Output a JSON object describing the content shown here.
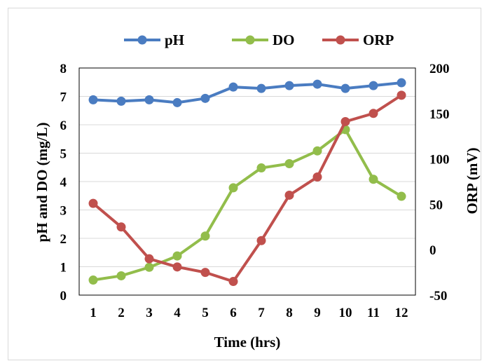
{
  "chart_data": {
    "type": "line",
    "xlabel": "Time (hrs)",
    "ylabel": "pH  and DO (mg/L)",
    "y2label": "ORP (mV)",
    "categories": [
      "1",
      "2",
      "3",
      "4",
      "5",
      "6",
      "7",
      "8",
      "9",
      "10",
      "11",
      "12"
    ],
    "ylim": [
      0,
      8
    ],
    "yticks": [
      "0",
      "1",
      "2",
      "3",
      "4",
      "5",
      "6",
      "7",
      "8"
    ],
    "y2lim": [
      -50,
      200
    ],
    "y2ticks": [
      "-50",
      "0",
      "50",
      "100",
      "150",
      "200"
    ],
    "grid": true,
    "legend_position": "top-center",
    "series": [
      {
        "name": "pH",
        "axis": "left",
        "color": "#4a7cc1",
        "values": [
          6.88,
          6.83,
          6.88,
          6.78,
          6.93,
          7.33,
          7.28,
          7.38,
          7.43,
          7.28,
          7.38,
          7.48
        ]
      },
      {
        "name": "DO",
        "axis": "left",
        "color": "#92bd4b",
        "values": [
          0.53,
          0.68,
          0.98,
          1.38,
          2.08,
          3.78,
          4.48,
          4.63,
          5.08,
          5.83,
          4.08,
          3.48
        ]
      },
      {
        "name": "ORP",
        "axis": "right",
        "color": "#c0504d",
        "values": [
          51,
          25,
          -10,
          -19,
          -25,
          -35,
          10,
          60,
          80,
          141,
          150,
          170
        ]
      }
    ]
  }
}
